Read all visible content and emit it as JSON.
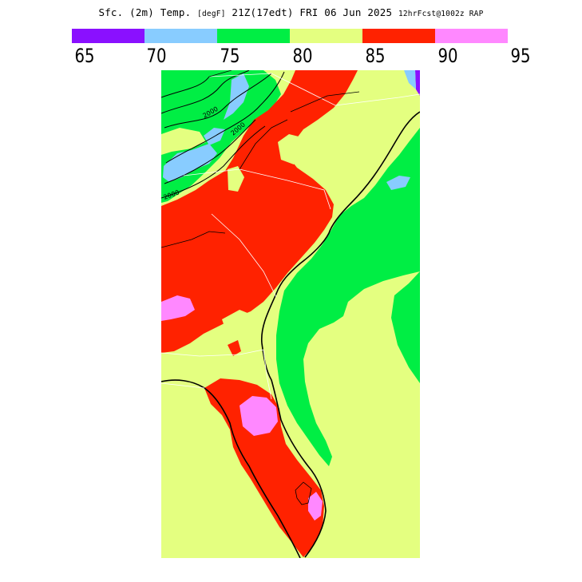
{
  "title": {
    "main": "Sfc. (2m) Temp.",
    "units": "[degF]",
    "valid": "21Z(17edt) FRI 06 Jun 2025",
    "forecast": "12hrFcst@1002z RAP"
  },
  "colorbar": {
    "segments": [
      {
        "color": "#8a10ff",
        "from": 65,
        "to": 70
      },
      {
        "color": "#88ccff",
        "from": 70,
        "to": 75
      },
      {
        "color": "#00ee44",
        "from": 75,
        "to": 80
      },
      {
        "color": "#e4ff80",
        "from": 80,
        "to": 85
      },
      {
        "color": "#ff2200",
        "from": 85,
        "to": 90
      },
      {
        "color": "#ff88ff",
        "from": 90,
        "to": 95
      }
    ],
    "tick_labels": [
      "65",
      "70",
      "75",
      "80",
      "85",
      "90",
      "95"
    ]
  },
  "map": {
    "region": "southeastern-us",
    "contour_labels": [
      "2000",
      "2000",
      "2000"
    ]
  }
}
